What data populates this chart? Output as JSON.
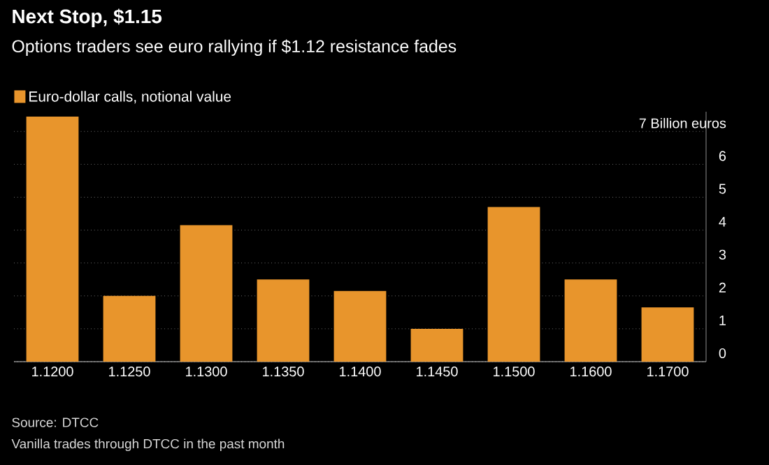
{
  "chart_data": {
    "type": "bar",
    "title": "Next Stop, $1.15",
    "subtitle": "Options traders see euro rallying if $1.12 resistance fades",
    "categories": [
      "1.1200",
      "1.1250",
      "1.1300",
      "1.1350",
      "1.1400",
      "1.1450",
      "1.1500",
      "1.1600",
      "1.1700"
    ],
    "series": [
      {
        "name": "Euro-dollar calls, notional value",
        "color": "#e8952c",
        "values": [
          7.45,
          2.0,
          4.15,
          2.5,
          2.15,
          1.0,
          4.7,
          2.5,
          1.65
        ]
      }
    ],
    "ylim": [
      0,
      7.6
    ],
    "yticks": [
      0,
      1,
      2,
      3,
      4,
      5,
      6,
      {
        "value": 7,
        "label": "7 Billion euros"
      }
    ],
    "grid": "y",
    "legend": "top left",
    "annotations": [
      "Source: DTCC",
      "Vanilla trades through DTCC in the past month"
    ]
  }
}
